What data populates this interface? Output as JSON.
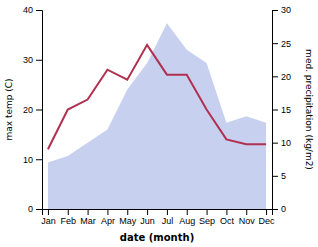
{
  "chart_data": {
    "type": "line",
    "xlabel": "date (month)",
    "ylabel": "max temp (C)",
    "y2label": "med. precipitation (kg/m2)",
    "categories": [
      "Jan",
      "Feb",
      "Mar",
      "Apr",
      "May",
      "Jun",
      "Jul",
      "Aug",
      "Sep",
      "Oct",
      "Nov",
      "Dec"
    ],
    "series": [
      {
        "type": "area",
        "axis": "y2",
        "color": "#c8d0f0",
        "values": [
          7,
          8,
          10,
          12,
          18,
          22,
          28,
          24,
          22,
          13,
          14,
          13
        ]
      },
      {
        "type": "line",
        "color": "#b03050",
        "values": [
          12,
          20,
          22,
          28,
          26,
          33,
          27,
          27,
          20,
          14,
          13,
          13
        ]
      }
    ],
    "ylim": [
      0,
      40
    ],
    "yticks": [
      0,
      10,
      20,
      30,
      40
    ],
    "y2lim": [
      0,
      30
    ],
    "y2ticks": [
      0,
      5,
      10,
      15,
      20,
      25,
      30
    ],
    "grid": false
  }
}
